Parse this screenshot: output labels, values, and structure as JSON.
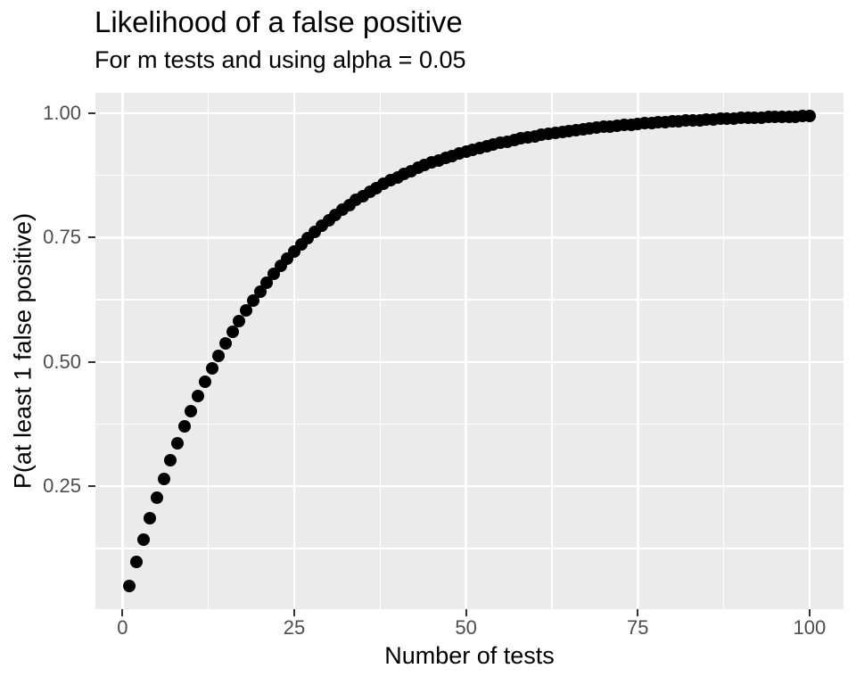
{
  "colors": {
    "panel_background": "#ebebeb",
    "gridline": "#ffffff",
    "point": "#000000",
    "tick_mark": "#333333",
    "tick_label": "#4d4d4d",
    "title_text": "#000000",
    "figure_background": "#ffffff"
  },
  "chart_data": {
    "type": "scatter",
    "title": "Likelihood of a false positive",
    "subtitle": "For m tests and using alpha = 0.05",
    "xlabel": "Number of tests",
    "ylabel": "P(at least 1 false positive)",
    "legend": "none",
    "grid": true,
    "xlim": [
      -3.95,
      104.95
    ],
    "ylim": [
      0.0028,
      1.0412
    ],
    "x_ticks": [
      0,
      25,
      50,
      75,
      100
    ],
    "x_tick_labels": [
      "0",
      "25",
      "50",
      "75",
      "100"
    ],
    "y_ticks": [
      0.25,
      0.5,
      0.75,
      1.0
    ],
    "y_tick_labels": [
      "0.25",
      "0.50",
      "0.75",
      "1.00"
    ],
    "x_minor_ticks": [
      12.5,
      37.5,
      62.5,
      87.5
    ],
    "y_minor_ticks": [
      0.125,
      0.375,
      0.625,
      0.875
    ],
    "x": [
      1,
      2,
      3,
      4,
      5,
      6,
      7,
      8,
      9,
      10,
      11,
      12,
      13,
      14,
      15,
      16,
      17,
      18,
      19,
      20,
      21,
      22,
      23,
      24,
      25,
      26,
      27,
      28,
      29,
      30,
      31,
      32,
      33,
      34,
      35,
      36,
      37,
      38,
      39,
      40,
      41,
      42,
      43,
      44,
      45,
      46,
      47,
      48,
      49,
      50,
      51,
      52,
      53,
      54,
      55,
      56,
      57,
      58,
      59,
      60,
      61,
      62,
      63,
      64,
      65,
      66,
      67,
      68,
      69,
      70,
      71,
      72,
      73,
      74,
      75,
      76,
      77,
      78,
      79,
      80,
      81,
      82,
      83,
      84,
      85,
      86,
      87,
      88,
      89,
      90,
      91,
      92,
      93,
      94,
      95,
      96,
      97,
      98,
      99,
      100
    ],
    "y": [
      0.05,
      0.0975,
      0.1426,
      0.1855,
      0.2262,
      0.2649,
      0.3017,
      0.3366,
      0.3698,
      0.4013,
      0.4312,
      0.4596,
      0.4867,
      0.5123,
      0.5367,
      0.5599,
      0.5819,
      0.6028,
      0.6226,
      0.6415,
      0.6594,
      0.6765,
      0.6926,
      0.708,
      0.7226,
      0.7365,
      0.7497,
      0.7622,
      0.7741,
      0.7854,
      0.7961,
      0.8063,
      0.816,
      0.8252,
      0.8339,
      0.8422,
      0.8501,
      0.8576,
      0.8647,
      0.8715,
      0.8779,
      0.884,
      0.8898,
      0.8953,
      0.9006,
      0.9055,
      0.9103,
      0.9147,
      0.919,
      0.9231,
      0.9269,
      0.9306,
      0.934,
      0.9373,
      0.9405,
      0.9434,
      0.9463,
      0.949,
      0.9515,
      0.9539,
      0.9562,
      0.9584,
      0.9605,
      0.9625,
      0.9644,
      0.9661,
      0.9678,
      0.9694,
      0.971,
      0.9724,
      0.9738,
      0.9751,
      0.9764,
      0.9775,
      0.9787,
      0.9797,
      0.9807,
      0.9817,
      0.9826,
      0.9835,
      0.9843,
      0.9851,
      0.9858,
      0.9865,
      0.9872,
      0.9879,
      0.9885,
      0.989,
      0.9896,
      0.9901,
      0.9906,
      0.9911,
      0.9915,
      0.9919,
      0.9923,
      0.9927,
      0.9931,
      0.9934,
      0.9938,
      0.9941
    ]
  }
}
